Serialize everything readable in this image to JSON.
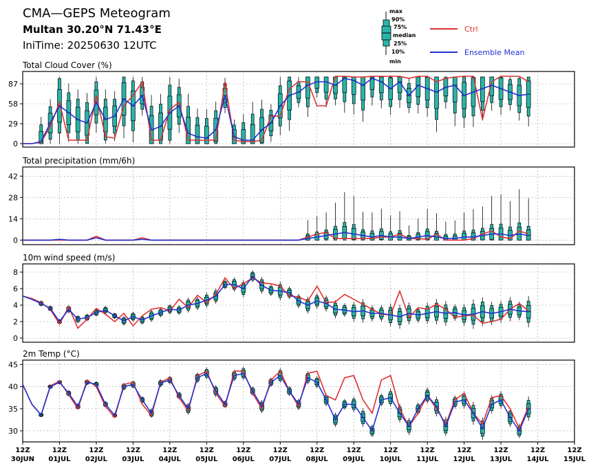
{
  "header": {
    "title": "CMA—GEPS Meteogram",
    "location": "Multan 30.20°N 71.43°E",
    "init_time": "IniTime: 20250630 12UTC"
  },
  "legend": {
    "box_labels": [
      "max",
      "90%",
      "75%",
      "median",
      "25%",
      "10%",
      "min"
    ],
    "ctrl_label": "Ctrl",
    "mean_label": "Ensemble Mean"
  },
  "colors": {
    "ctrl": "#e03030",
    "mean": "#2030d0",
    "box_fill": "#2ab3a8",
    "box_edge": "#000000",
    "grid": "#9a9a9a"
  },
  "x_axis": {
    "tick_labels": [
      {
        "hour": "12Z",
        "date": "30JUN"
      },
      {
        "hour": "12Z",
        "date": "01JUL"
      },
      {
        "hour": "12Z",
        "date": "02JUL"
      },
      {
        "hour": "12Z",
        "date": "03JUL"
      },
      {
        "hour": "12Z",
        "date": "04JUL"
      },
      {
        "hour": "12Z",
        "date": "05JUL"
      },
      {
        "hour": "12Z",
        "date": "06JUL"
      },
      {
        "hour": "12Z",
        "date": "07JUL"
      },
      {
        "hour": "12Z",
        "date": "08JUL"
      },
      {
        "hour": "12Z",
        "date": "09JUL"
      },
      {
        "hour": "12Z",
        "date": "10JUL"
      },
      {
        "hour": "12Z",
        "date": "11JUL"
      },
      {
        "hour": "12Z",
        "date": "12JUL"
      },
      {
        "hour": "12Z",
        "date": "13JUL"
      },
      {
        "hour": "12Z",
        "date": "14JUL"
      },
      {
        "hour": "12Z",
        "date": "15JUL"
      }
    ]
  },
  "chart_data": [
    {
      "id": "cloud",
      "type": "box",
      "title": "Total Cloud Cover (%)",
      "ylim": [
        -5,
        105
      ],
      "yticks": [
        0,
        29,
        58,
        87
      ],
      "boxes_from_day": 0.5,
      "step_days": 0.25,
      "mean": [
        0,
        0,
        3,
        30,
        55,
        45,
        35,
        30,
        60,
        35,
        40,
        65,
        55,
        70,
        20,
        25,
        45,
        55,
        15,
        10,
        8,
        20,
        70,
        10,
        5,
        5,
        20,
        30,
        55,
        70,
        75,
        85,
        90,
        90,
        85,
        95,
        92,
        85,
        95,
        90,
        80,
        90,
        70,
        85,
        80,
        75,
        82,
        85,
        70,
        75,
        80,
        85,
        80,
        75,
        70,
        72
      ],
      "ctrl": [
        0,
        0,
        2,
        25,
        60,
        5,
        5,
        5,
        70,
        10,
        8,
        55,
        70,
        90,
        5,
        5,
        50,
        60,
        5,
        5,
        5,
        5,
        90,
        5,
        3,
        3,
        5,
        40,
        40,
        80,
        90,
        90,
        55,
        55,
        98,
        98,
        97,
        97,
        98,
        98,
        98,
        98,
        95,
        98,
        98,
        90,
        95,
        97,
        98,
        98,
        35,
        90,
        98,
        98,
        98,
        90
      ]
    },
    {
      "id": "precip",
      "type": "box",
      "title": "Total precipitation (mm/6h)",
      "ylim": [
        -3,
        48
      ],
      "yticks": [
        0,
        14,
        28,
        42
      ],
      "boxes_from_day": 7.75,
      "step_days": 0.25,
      "mean": [
        0,
        0,
        0,
        0,
        0.5,
        0,
        0,
        0,
        1.5,
        0,
        0,
        0,
        0,
        0.5,
        0,
        0,
        0,
        0,
        0,
        0,
        0,
        0,
        0,
        0,
        0,
        0,
        0,
        0,
        0,
        0,
        0,
        1,
        2,
        3,
        4,
        5,
        4,
        3,
        2,
        3,
        2,
        2,
        1,
        2,
        3,
        2,
        1,
        1,
        2,
        2,
        3,
        4,
        4,
        3,
        4,
        3
      ],
      "ctrl": [
        0,
        0,
        0,
        0,
        0,
        0,
        0,
        0,
        2.5,
        0,
        0,
        0,
        0,
        1.5,
        0,
        0,
        0,
        0,
        0,
        0,
        0,
        0,
        0,
        0,
        0,
        0,
        0,
        0,
        0,
        0,
        0,
        2,
        4,
        5,
        1,
        1,
        1,
        1,
        1,
        2,
        2,
        4,
        1,
        1,
        0.5,
        4,
        0,
        0,
        0,
        1,
        4,
        6,
        2,
        1,
        6,
        4
      ]
    },
    {
      "id": "wind",
      "type": "box",
      "title": "10m wind speed (m/s)",
      "ylim": [
        -0.5,
        9
      ],
      "yticks": [
        0,
        2,
        4,
        6,
        8
      ],
      "boxes_from_day": 0.5,
      "step_days": 0.25,
      "mean": [
        5.1,
        4.7,
        4.2,
        3.6,
        2.0,
        3.5,
        2.3,
        2.5,
        3.1,
        3.4,
        2.7,
        2.1,
        2.6,
        2.2,
        2.7,
        3.1,
        3.5,
        3.4,
        4.0,
        4.2,
        4.6,
        5.1,
        6.5,
        6.5,
        6.0,
        7.5,
        6.4,
        5.8,
        5.7,
        5.5,
        4.5,
        4.0,
        4.5,
        4.2,
        3.5,
        3.4,
        3.2,
        3.3,
        3.0,
        3.0,
        2.8,
        2.6,
        3.0,
        2.8,
        3.0,
        3.2,
        3.0,
        3.1,
        2.8,
        2.9,
        3.2,
        3.0,
        3.2,
        3.5,
        3.3,
        3.2
      ],
      "ctrl": [
        5.1,
        4.8,
        4.3,
        3.5,
        1.7,
        3.8,
        1.2,
        2.3,
        3.6,
        2.9,
        2.0,
        3.0,
        1.5,
        2.7,
        3.5,
        3.7,
        3.3,
        4.7,
        3.7,
        5.2,
        4.3,
        5.3,
        7.3,
        6.0,
        6.6,
        7.3,
        6.7,
        6.6,
        6.3,
        5.1,
        5.0,
        4.5,
        6.3,
        4.3,
        4.4,
        5.3,
        4.7,
        4.1,
        3.5,
        2.9,
        2.8,
        5.7,
        2.5,
        3.7,
        3.5,
        4.1,
        3.5,
        2.5,
        2.7,
        2.8,
        1.8,
        2.0,
        2.3,
        3.5,
        4.2,
        3.3
      ]
    },
    {
      "id": "temp",
      "type": "box",
      "title": "2m Temp (°C)",
      "ylim": [
        27.5,
        46
      ],
      "yticks": [
        30,
        35,
        40,
        45
      ],
      "boxes_from_day": 0.5,
      "step_days": 0.25,
      "mean": [
        40.5,
        36.0,
        33.6,
        40.0,
        41.0,
        38.5,
        35.5,
        41.0,
        40.5,
        36.0,
        33.5,
        40.0,
        40.5,
        37.0,
        34.0,
        40.8,
        41.5,
        38.0,
        35.0,
        42.0,
        43.0,
        39.0,
        36.0,
        42.5,
        43.0,
        39.0,
        35.5,
        41.0,
        42.5,
        39.0,
        36.0,
        42.0,
        41.0,
        37.0,
        32.5,
        36.0,
        36.0,
        33.0,
        30.0,
        37.0,
        37.5,
        34.0,
        31.0,
        35.0,
        38.0,
        35.5,
        31.0,
        36.5,
        37.0,
        34.0,
        30.5,
        36.0,
        37.0,
        33.0,
        30.0,
        35.0
      ],
      "ctrl": [
        40.5,
        36.0,
        33.6,
        40.2,
        41.2,
        38.2,
        35.0,
        41.5,
        40.0,
        35.5,
        33.0,
        40.5,
        41.0,
        36.0,
        33.5,
        41.0,
        42.0,
        37.5,
        34.5,
        42.5,
        43.5,
        38.5,
        35.5,
        43.5,
        43.5,
        38.5,
        35.0,
        41.5,
        43.5,
        39.0,
        35.5,
        43.0,
        43.5,
        38.0,
        37.0,
        42.0,
        42.5,
        37.0,
        34.0,
        41.5,
        42.5,
        35.0,
        31.0,
        34.0,
        38.0,
        35.0,
        31.5,
        37.0,
        38.5,
        34.0,
        31.5,
        37.5,
        38.0,
        35.0,
        30.5,
        35.5
      ]
    }
  ]
}
